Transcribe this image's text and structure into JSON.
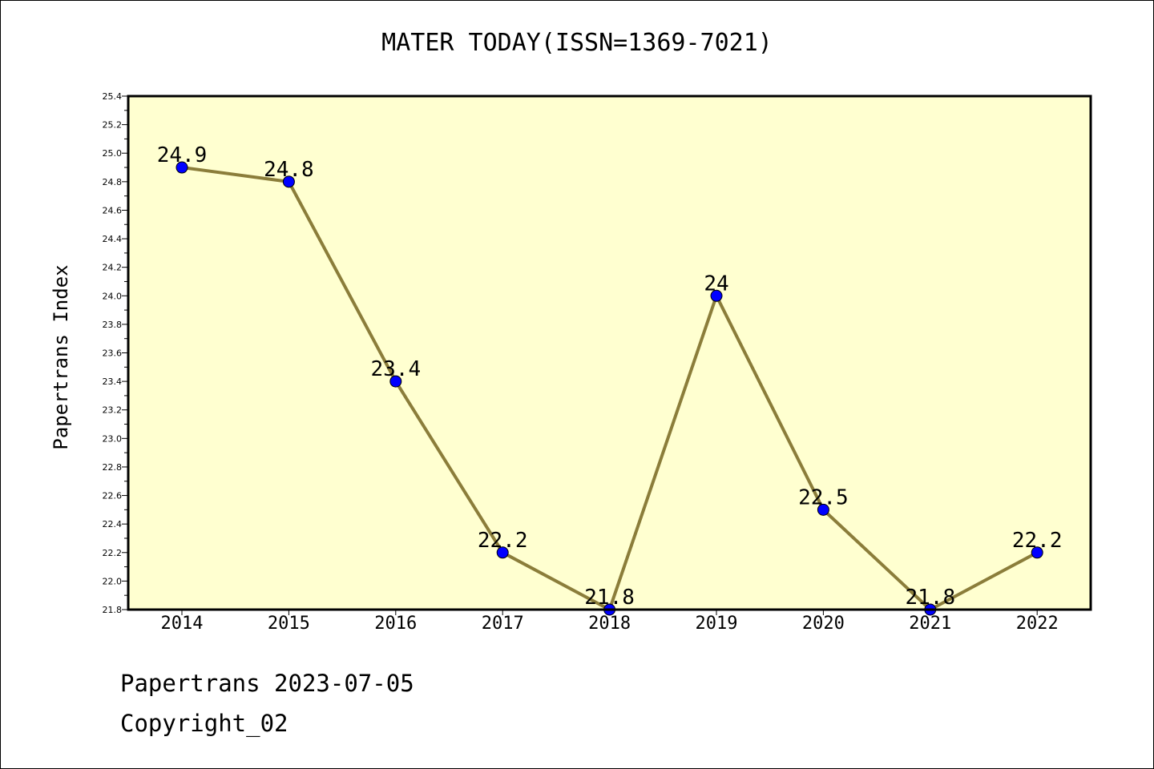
{
  "chart_data": {
    "type": "line",
    "title": "MATER TODAY(ISSN=1369-7021)",
    "xlabel": "",
    "ylabel": "Papertrans Index",
    "categories": [
      "2014",
      "2015",
      "2016",
      "2017",
      "2018",
      "2019",
      "2020",
      "2021",
      "2022"
    ],
    "values": [
      24.9,
      24.8,
      23.4,
      22.2,
      21.8,
      24.0,
      22.5,
      21.8,
      22.2
    ],
    "data_labels": [
      "24.9",
      "24.8",
      "23.4",
      "22.2",
      "21.8",
      "24",
      "22.5",
      "21.8",
      "22.2"
    ],
    "ylim": [
      21.8,
      25.4
    ],
    "yticks": [
      "21.8",
      "22.0",
      "22.2",
      "22.4",
      "22.6",
      "22.8",
      "23.0",
      "23.2",
      "23.4",
      "23.6",
      "23.8",
      "24.0",
      "24.2",
      "24.4",
      "24.6",
      "24.8",
      "25.0",
      "25.2",
      "25.4"
    ],
    "grid": false,
    "colors": {
      "plot_background": "#ffffd0",
      "line": "#8b7d3a",
      "marker": "#0000ff"
    }
  },
  "footer": {
    "line1": "Papertrans 2023-07-05",
    "line2": "Copyright_02"
  }
}
